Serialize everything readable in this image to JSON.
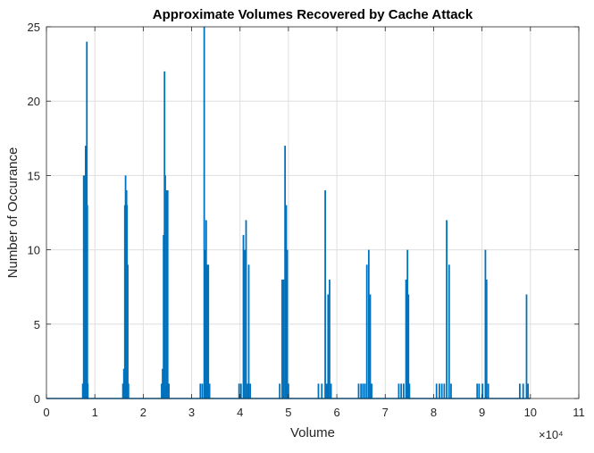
{
  "chart_data": {
    "type": "line",
    "title": "Approximate Volumes Recovered by Cache Attack",
    "xlabel": "Volume",
    "ylabel": "Number of Occurance",
    "xlim": [
      0,
      110000
    ],
    "ylim": [
      0,
      25
    ],
    "x_tick_values": [
      0,
      10000,
      20000,
      30000,
      40000,
      50000,
      60000,
      70000,
      80000,
      90000,
      100000,
      110000
    ],
    "x_tick_labels": [
      "0",
      "1",
      "2",
      "3",
      "4",
      "5",
      "6",
      "7",
      "8",
      "9",
      "10",
      "11"
    ],
    "x_exponent_label": "×10⁴",
    "y_tick_values": [
      0,
      5,
      10,
      15,
      20,
      25
    ],
    "y_tick_labels": [
      "0",
      "5",
      "10",
      "15",
      "20",
      "25"
    ],
    "grid": true,
    "line_color": "#0072BD",
    "series": [
      {
        "values_at_x": [
          [
            7500,
            1
          ],
          [
            7700,
            15
          ],
          [
            7850,
            1
          ],
          [
            8000,
            15
          ],
          [
            8100,
            17
          ],
          [
            8250,
            1
          ],
          [
            8350,
            24
          ],
          [
            8450,
            13
          ],
          [
            8550,
            1
          ],
          [
            15800,
            1
          ],
          [
            16000,
            2
          ],
          [
            16200,
            13
          ],
          [
            16350,
            15
          ],
          [
            16450,
            11
          ],
          [
            16550,
            14
          ],
          [
            16650,
            13
          ],
          [
            16800,
            9
          ],
          [
            16950,
            1
          ],
          [
            23800,
            1
          ],
          [
            24000,
            2
          ],
          [
            24200,
            11
          ],
          [
            24400,
            22
          ],
          [
            24550,
            15
          ],
          [
            24700,
            1
          ],
          [
            24850,
            14
          ],
          [
            25050,
            14
          ],
          [
            25300,
            1
          ],
          [
            31800,
            1
          ],
          [
            32200,
            1
          ],
          [
            32600,
            25
          ],
          [
            32800,
            10
          ],
          [
            33000,
            12
          ],
          [
            33200,
            9
          ],
          [
            33450,
            9
          ],
          [
            33700,
            1
          ],
          [
            39800,
            1
          ],
          [
            40200,
            1
          ],
          [
            40700,
            11
          ],
          [
            40950,
            10
          ],
          [
            41250,
            12
          ],
          [
            41550,
            1
          ],
          [
            41800,
            9
          ],
          [
            42100,
            1
          ],
          [
            48200,
            1
          ],
          [
            48700,
            8
          ],
          [
            49000,
            8
          ],
          [
            49300,
            17
          ],
          [
            49550,
            13
          ],
          [
            49750,
            10
          ],
          [
            50000,
            1
          ],
          [
            56200,
            1
          ],
          [
            56900,
            1
          ],
          [
            57600,
            14
          ],
          [
            57900,
            1
          ],
          [
            58200,
            7
          ],
          [
            58500,
            8
          ],
          [
            58800,
            1
          ],
          [
            64500,
            1
          ],
          [
            65000,
            1
          ],
          [
            65400,
            1
          ],
          [
            65800,
            1
          ],
          [
            66200,
            9
          ],
          [
            66600,
            10
          ],
          [
            66900,
            7
          ],
          [
            67200,
            1
          ],
          [
            72800,
            1
          ],
          [
            73300,
            1
          ],
          [
            73800,
            1
          ],
          [
            74300,
            8
          ],
          [
            74600,
            10
          ],
          [
            74800,
            7
          ],
          [
            75000,
            1
          ],
          [
            80600,
            1
          ],
          [
            81200,
            1
          ],
          [
            81700,
            1
          ],
          [
            82200,
            1
          ],
          [
            82700,
            12
          ],
          [
            83200,
            9
          ],
          [
            83600,
            1
          ],
          [
            89000,
            1
          ],
          [
            89400,
            1
          ],
          [
            90100,
            1
          ],
          [
            90700,
            10
          ],
          [
            90950,
            8
          ],
          [
            91300,
            1
          ],
          [
            97800,
            1
          ],
          [
            98500,
            1
          ],
          [
            99200,
            7
          ],
          [
            99500,
            1
          ]
        ]
      }
    ]
  }
}
